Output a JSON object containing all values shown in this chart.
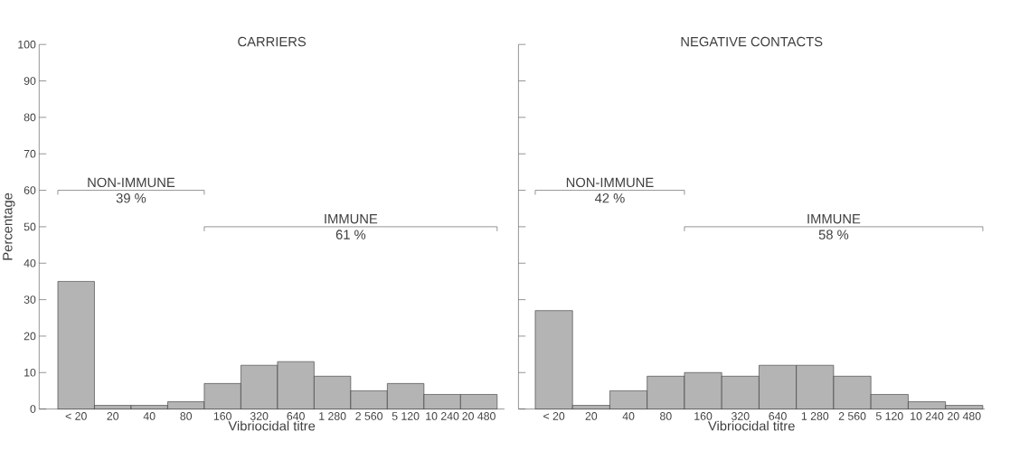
{
  "chart_data": [
    {
      "type": "bar",
      "title": "CARRIERS",
      "xlabel": "Vibriocidal titre",
      "ylabel": "Percentage",
      "categories": [
        "< 20",
        "20",
        "40",
        "80",
        "160",
        "320",
        "640",
        "1 280",
        "2 560",
        "5 120",
        "10 240",
        "20 480"
      ],
      "values": [
        35,
        1,
        1,
        2,
        7,
        12,
        13,
        9,
        5,
        7,
        4,
        4
      ],
      "color": "#b4b4b4",
      "ylim": [
        0,
        100
      ],
      "yticks": [
        0,
        10,
        20,
        30,
        40,
        50,
        60,
        70,
        80,
        90,
        100
      ],
      "annotations": [
        "NON-IMMUNE",
        "39 %",
        "IMMUNE",
        "61 %"
      ]
    },
    {
      "type": "bar",
      "title": "NEGATIVE CONTACTS",
      "xlabel": "Vibriocidal titre",
      "categories": [
        "< 20",
        "20",
        "40",
        "80",
        "160",
        "320",
        "640",
        "1 280",
        "2 560",
        "5 120",
        "10 240",
        "20 480"
      ],
      "values": [
        27,
        1,
        5,
        9,
        10,
        9,
        12,
        12,
        9,
        4,
        2,
        1
      ],
      "color": "#b4b4b4",
      "ylim": [
        0,
        100
      ],
      "yticks": [
        0,
        10,
        20,
        30,
        40,
        50,
        60,
        70,
        80,
        90,
        100
      ],
      "tick_labels": "x",
      "annotations": [
        "NON-IMMUNE",
        "42 %",
        "IMMUNE",
        "58 %"
      ]
    }
  ]
}
